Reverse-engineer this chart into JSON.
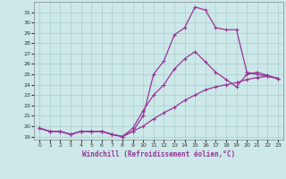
{
  "background_color": "#cce8e8",
  "grid_color": "#aacccc",
  "line_color": "#993399",
  "marker": "+",
  "xlabel": "Windchill (Refroidissement éolien,°C)",
  "xlim": [
    -0.5,
    23.5
  ],
  "ylim": [
    18.7,
    32.0
  ],
  "yticks": [
    19,
    20,
    21,
    22,
    23,
    24,
    25,
    26,
    27,
    28,
    29,
    30,
    31
  ],
  "xticks": [
    0,
    1,
    2,
    3,
    4,
    5,
    6,
    7,
    8,
    9,
    10,
    11,
    12,
    13,
    14,
    15,
    16,
    17,
    18,
    19,
    20,
    21,
    22,
    23
  ],
  "curve1_x": [
    0,
    1,
    2,
    3,
    4,
    5,
    6,
    7,
    8,
    9,
    10,
    11,
    12,
    13,
    14,
    15,
    16,
    17,
    18,
    19,
    20,
    21,
    22,
    23
  ],
  "curve1_y": [
    19.8,
    19.5,
    19.5,
    19.2,
    19.5,
    19.5,
    19.5,
    19.2,
    19.0,
    19.5,
    21.0,
    25.0,
    26.3,
    28.8,
    29.5,
    31.5,
    31.2,
    29.5,
    29.3,
    29.3,
    25.2,
    25.0,
    24.8,
    24.6
  ],
  "curve2_x": [
    0,
    1,
    2,
    3,
    4,
    5,
    6,
    7,
    8,
    9,
    10,
    11,
    12,
    13,
    14,
    15,
    16,
    17,
    18,
    19,
    20,
    21,
    22,
    23
  ],
  "curve2_y": [
    19.8,
    19.5,
    19.5,
    19.2,
    19.5,
    19.5,
    19.5,
    19.2,
    19.0,
    19.8,
    21.5,
    23.0,
    24.0,
    25.5,
    26.5,
    27.2,
    26.2,
    25.2,
    24.5,
    23.8,
    25.0,
    25.2,
    24.9,
    24.6
  ],
  "curve3_x": [
    0,
    1,
    2,
    3,
    4,
    5,
    6,
    7,
    8,
    9,
    10,
    11,
    12,
    13,
    14,
    15,
    16,
    17,
    18,
    19,
    20,
    21,
    22,
    23
  ],
  "curve3_y": [
    19.8,
    19.5,
    19.5,
    19.2,
    19.5,
    19.5,
    19.5,
    19.2,
    19.0,
    19.5,
    20.0,
    20.7,
    21.3,
    21.8,
    22.5,
    23.0,
    23.5,
    23.8,
    24.0,
    24.2,
    24.5,
    24.7,
    24.8,
    24.6
  ]
}
